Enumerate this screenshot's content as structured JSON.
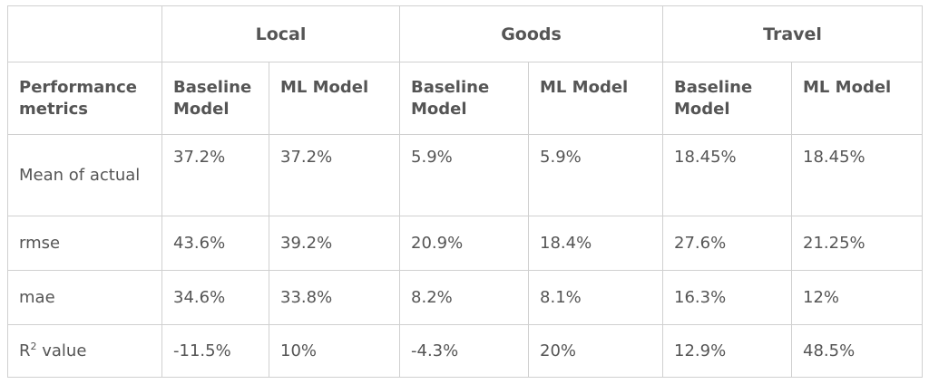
{
  "table": {
    "groups": [
      "Local",
      "Goods",
      "Travel"
    ],
    "corner_header": "Performance metrics",
    "sub_headers": [
      "Baseline Model",
      "ML Model",
      "Baseline Model",
      "ML Model",
      "Baseline Model",
      "ML Model"
    ],
    "rows": [
      {
        "metric": "Mean of actual",
        "values": [
          "37.2%",
          "37.2%",
          "5.9%",
          "5.9%",
          "18.45%",
          "18.45%"
        ]
      },
      {
        "metric": "rmse",
        "values": [
          "43.6%",
          "39.2%",
          "20.9%",
          "18.4%",
          "27.6%",
          "21.25%"
        ]
      },
      {
        "metric": "mae",
        "values": [
          "34.6%",
          "33.8%",
          "8.2%",
          "8.1%",
          "16.3%",
          "12%"
        ]
      },
      {
        "metric_prefix": "R",
        "metric_sup": "2",
        "metric_suffix": " value",
        "values": [
          "-11.5%",
          "10%",
          "-4.3%",
          "20%",
          "12.9%",
          "48.5%"
        ]
      }
    ]
  }
}
